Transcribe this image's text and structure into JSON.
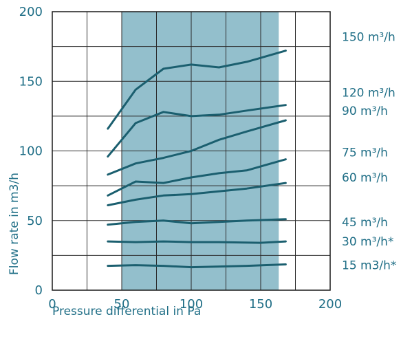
{
  "chart_data": {
    "type": "line",
    "xlabel": "Pressure differential in Pa",
    "ylabel": "Flow rate in m3/h",
    "xlim": [
      0,
      200
    ],
    "ylim": [
      0,
      200
    ],
    "xticks": [
      "0",
      "50",
      "100",
      "150",
      "200"
    ],
    "yticks": [
      "0",
      "50",
      "100",
      "150",
      "200"
    ],
    "x_step_gridlines": 25,
    "y_step_gridlines": 25,
    "grid": true,
    "highlight_band": {
      "x_range": [
        50,
        163
      ],
      "color": "#93bfcc"
    },
    "line_color": "#1b5f6f",
    "series": [
      {
        "name": "150 m³/h",
        "label_y": 182,
        "points": [
          [
            40,
            116
          ],
          [
            60,
            144
          ],
          [
            80,
            159
          ],
          [
            100,
            162
          ],
          [
            120,
            160
          ],
          [
            140,
            164
          ],
          [
            168,
            172
          ]
        ]
      },
      {
        "name": "120 m³/h",
        "label_y": 142,
        "points": [
          [
            40,
            96
          ],
          [
            60,
            120
          ],
          [
            80,
            128
          ],
          [
            100,
            125
          ],
          [
            120,
            126
          ],
          [
            140,
            129
          ],
          [
            168,
            133
          ]
        ]
      },
      {
        "name": "90 m³/h",
        "label_y": 129,
        "points": [
          [
            40,
            83
          ],
          [
            60,
            91
          ],
          [
            80,
            95
          ],
          [
            100,
            100
          ],
          [
            120,
            108
          ],
          [
            140,
            114
          ],
          [
            168,
            122
          ]
        ]
      },
      {
        "name": "75 m³/h",
        "label_y": 99,
        "points": [
          [
            40,
            68
          ],
          [
            60,
            78
          ],
          [
            80,
            77
          ],
          [
            100,
            81
          ],
          [
            120,
            84
          ],
          [
            140,
            86
          ],
          [
            168,
            94
          ]
        ]
      },
      {
        "name": "60 m³/h",
        "label_y": 81,
        "points": [
          [
            40,
            61
          ],
          [
            60,
            65
          ],
          [
            80,
            68
          ],
          [
            100,
            69
          ],
          [
            120,
            71
          ],
          [
            140,
            73
          ],
          [
            168,
            77
          ]
        ]
      },
      {
        "name": "45 m³/h",
        "label_y": 49,
        "points": [
          [
            40,
            47
          ],
          [
            60,
            49
          ],
          [
            80,
            50
          ],
          [
            100,
            48
          ],
          [
            120,
            49
          ],
          [
            140,
            50
          ],
          [
            168,
            51
          ]
        ]
      },
      {
        "name": "30 m³/h*",
        "label_y": 35,
        "points": [
          [
            40,
            35
          ],
          [
            60,
            34.5
          ],
          [
            80,
            35
          ],
          [
            100,
            34.5
          ],
          [
            120,
            34.5
          ],
          [
            150,
            34
          ],
          [
            168,
            35
          ]
        ]
      },
      {
        "name": "15 m3/h*",
        "label_y": 18,
        "points": [
          [
            40,
            17.5
          ],
          [
            60,
            18
          ],
          [
            80,
            17.5
          ],
          [
            100,
            16.5
          ],
          [
            120,
            17
          ],
          [
            140,
            17.5
          ],
          [
            168,
            18.5
          ]
        ]
      }
    ]
  }
}
